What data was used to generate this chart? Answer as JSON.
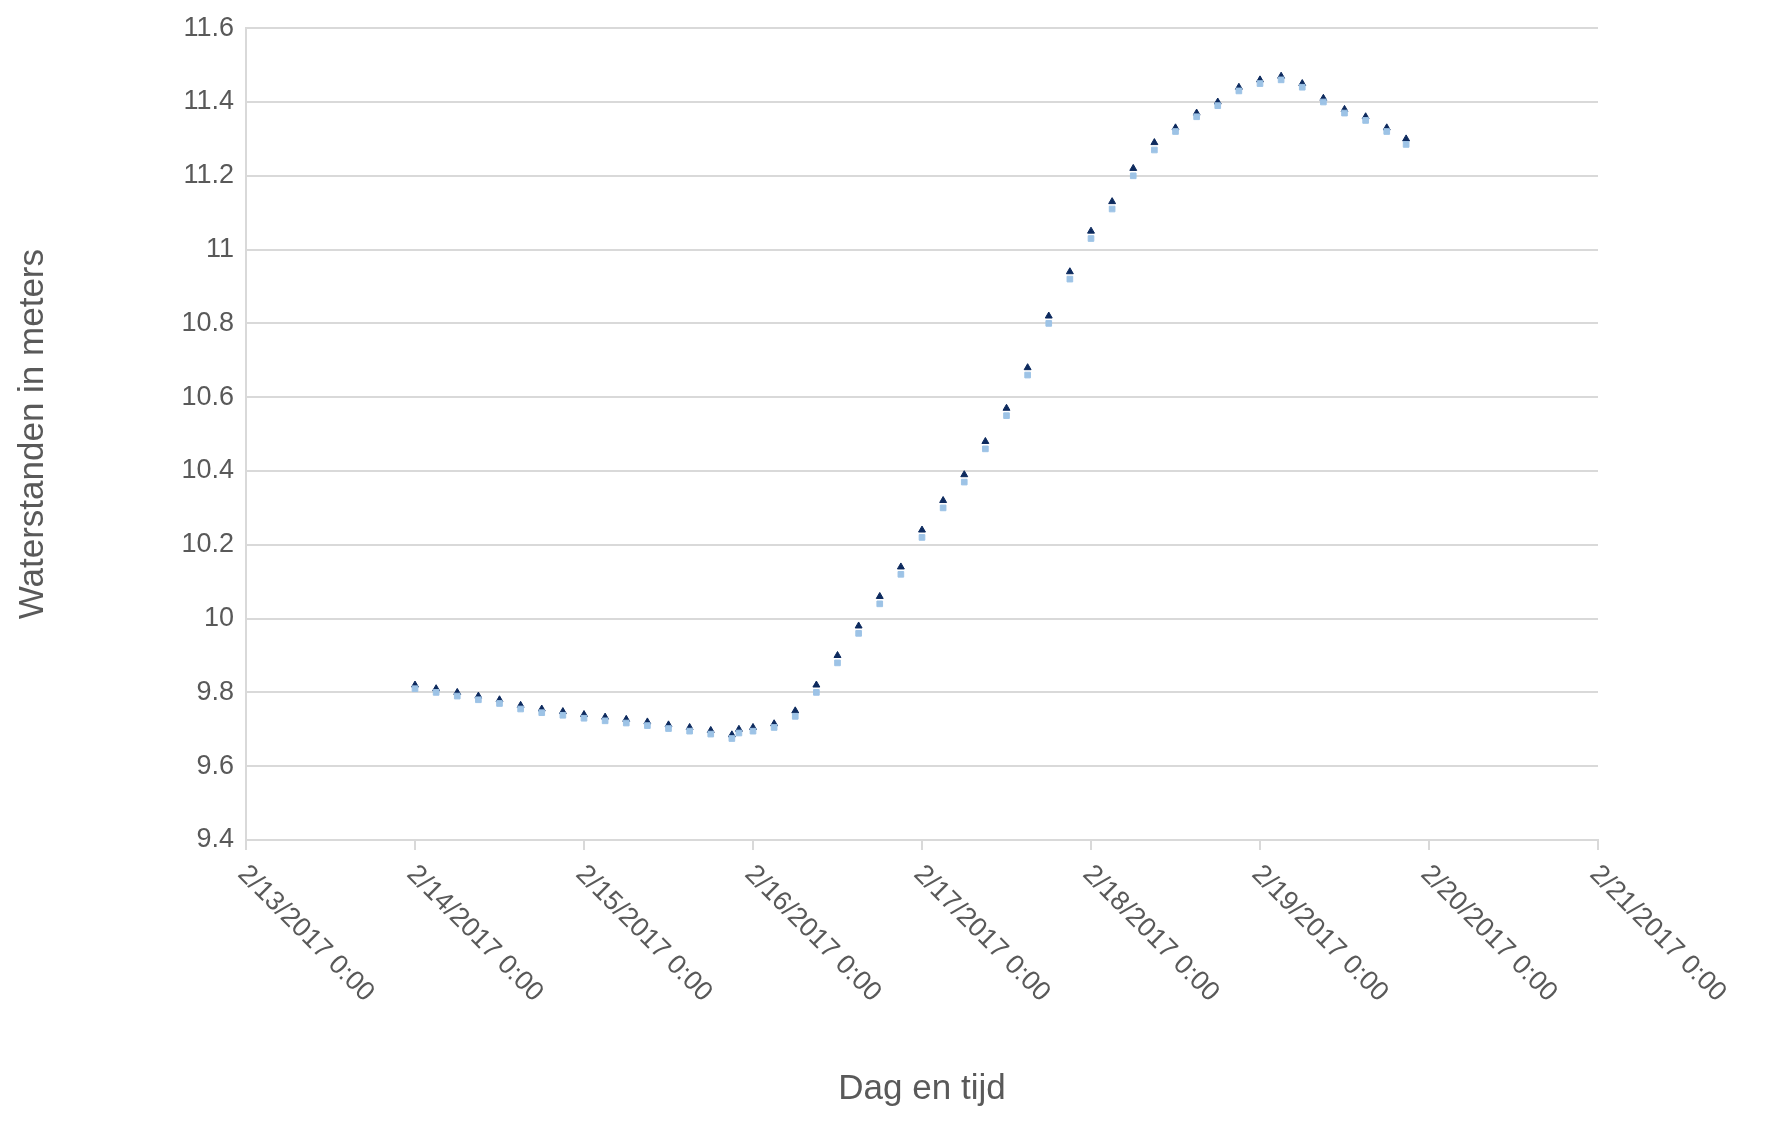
{
  "chart_data": {
    "type": "scatter",
    "xlabel": "Dag en tijd",
    "ylabel": "Waterstanden in meters",
    "x": [
      "2017-02-14T00:00",
      "2017-02-14T03:00",
      "2017-02-14T06:00",
      "2017-02-14T09:00",
      "2017-02-14T12:00",
      "2017-02-14T15:00",
      "2017-02-14T18:00",
      "2017-02-14T21:00",
      "2017-02-15T00:00",
      "2017-02-15T03:00",
      "2017-02-15T06:00",
      "2017-02-15T09:00",
      "2017-02-15T12:00",
      "2017-02-15T15:00",
      "2017-02-15T18:00",
      "2017-02-15T21:00",
      "2017-02-15T22:00",
      "2017-02-16T00:00",
      "2017-02-16T03:00",
      "2017-02-16T06:00",
      "2017-02-16T09:00",
      "2017-02-16T12:00",
      "2017-02-16T15:00",
      "2017-02-16T18:00",
      "2017-02-16T21:00",
      "2017-02-17T00:00",
      "2017-02-17T03:00",
      "2017-02-17T06:00",
      "2017-02-17T09:00",
      "2017-02-17T12:00",
      "2017-02-17T15:00",
      "2017-02-17T18:00",
      "2017-02-17T21:00",
      "2017-02-18T00:00",
      "2017-02-18T03:00",
      "2017-02-18T06:00",
      "2017-02-18T09:00",
      "2017-02-18T12:00",
      "2017-02-18T15:00",
      "2017-02-18T18:00",
      "2017-02-18T21:00",
      "2017-02-19T00:00",
      "2017-02-19T03:00",
      "2017-02-19T06:00",
      "2017-02-19T09:00",
      "2017-02-19T12:00",
      "2017-02-19T15:00",
      "2017-02-19T18:00",
      "2017-02-19T20:45"
    ],
    "series": [
      {
        "color": "#9dc3e6",
        "marker": "square",
        "values": [
          9.81,
          9.8,
          9.79,
          9.78,
          9.77,
          9.755,
          9.745,
          9.738,
          9.73,
          9.723,
          9.717,
          9.71,
          9.702,
          9.695,
          9.687,
          9.675,
          9.69,
          9.695,
          9.705,
          9.735,
          9.8,
          9.88,
          9.96,
          10.04,
          10.12,
          10.22,
          10.3,
          10.37,
          10.46,
          10.55,
          10.66,
          10.8,
          10.92,
          11.03,
          11.11,
          11.2,
          11.27,
          11.32,
          11.36,
          11.39,
          11.43,
          11.45,
          11.46,
          11.44,
          11.4,
          11.37,
          11.35,
          11.32,
          11.285
        ]
      },
      {
        "color": "#0d2a5e",
        "marker": "triangle",
        "values": [
          9.82,
          9.81,
          9.8,
          9.79,
          9.78,
          9.765,
          9.755,
          9.748,
          9.74,
          9.733,
          9.727,
          9.72,
          9.712,
          9.705,
          9.697,
          9.685,
          9.7,
          9.705,
          9.715,
          9.75,
          9.82,
          9.9,
          9.98,
          10.06,
          10.14,
          10.24,
          10.32,
          10.39,
          10.48,
          10.57,
          10.68,
          10.82,
          10.94,
          11.05,
          11.13,
          11.22,
          11.29,
          11.33,
          11.37,
          11.4,
          11.44,
          11.46,
          11.47,
          11.45,
          11.41,
          11.38,
          11.36,
          11.33,
          11.3
        ]
      }
    ],
    "xlim": [
      "2017-02-13T00:00",
      "2017-02-21T00:00"
    ],
    "xticks": [
      {
        "value": "2017-02-13T00:00",
        "label": "2/13/2017 0:00"
      },
      {
        "value": "2017-02-14T00:00",
        "label": "2/14/2017 0:00"
      },
      {
        "value": "2017-02-15T00:00",
        "label": "2/15/2017 0:00"
      },
      {
        "value": "2017-02-16T00:00",
        "label": "2/16/2017 0:00"
      },
      {
        "value": "2017-02-17T00:00",
        "label": "2/17/2017 0:00"
      },
      {
        "value": "2017-02-18T00:00",
        "label": "2/18/2017 0:00"
      },
      {
        "value": "2017-02-19T00:00",
        "label": "2/19/2017 0:00"
      },
      {
        "value": "2017-02-20T00:00",
        "label": "2/20/2017 0:00"
      },
      {
        "value": "2017-02-21T00:00",
        "label": "2/21/2017 0:00"
      }
    ],
    "ylim": [
      9.4,
      11.6
    ],
    "yticks": [
      9.4,
      9.6,
      9.8,
      10,
      10.2,
      10.4,
      10.6,
      10.8,
      11,
      11.2,
      11.4,
      11.6
    ],
    "grid": "y",
    "legend": false
  }
}
